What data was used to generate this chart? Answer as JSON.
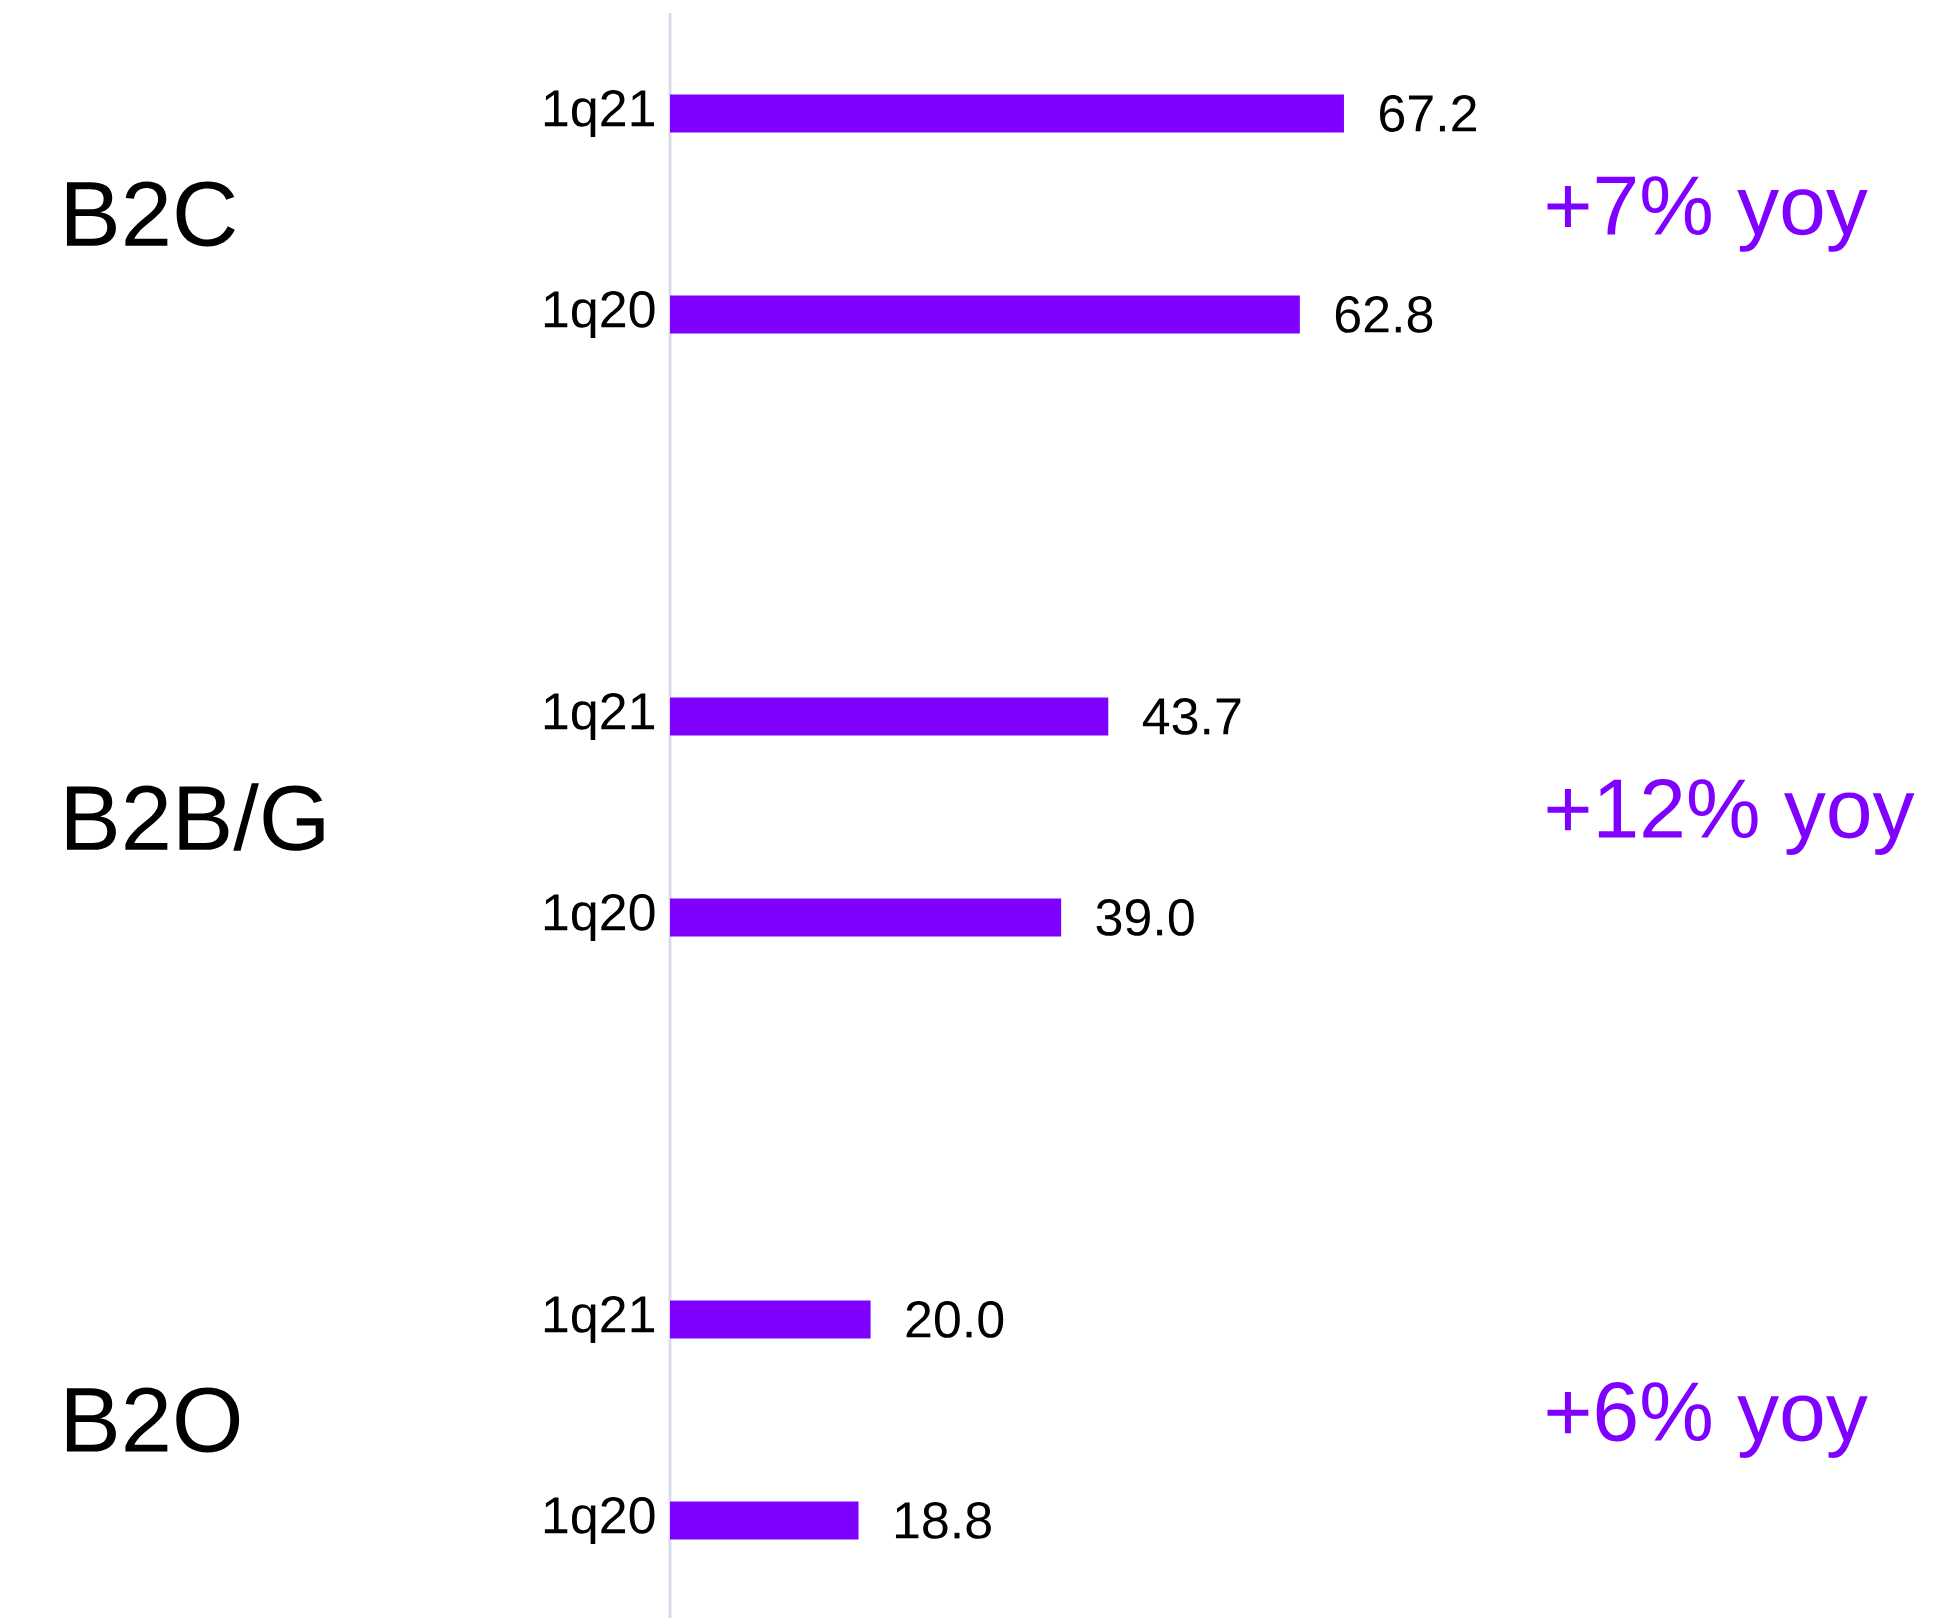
{
  "chart_data": {
    "type": "bar",
    "orientation": "horizontal",
    "categories": [
      "1q21",
      "1q20",
      null,
      "1q21",
      "1q20",
      null,
      "1q21",
      "1q20"
    ],
    "values": [
      67.2,
      62.8,
      null,
      43.7,
      39.0,
      null,
      20.0,
      18.8
    ],
    "value_labels": [
      "67.2",
      "62.8",
      null,
      "43.7",
      "39.0",
      null,
      "20.0",
      "18.8"
    ],
    "data_labels": true,
    "color": "#7f00ff",
    "annotations": [
      "B2C",
      "+7% yoy",
      "B2B/G",
      "+12% yoy",
      "B2O",
      "+6% yoy"
    ]
  }
}
